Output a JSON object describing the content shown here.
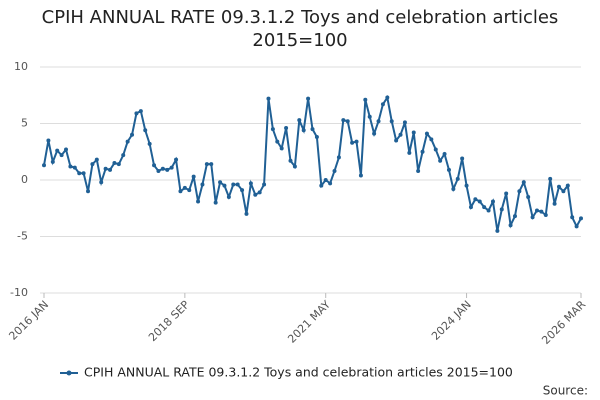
{
  "chart_data": {
    "type": "line",
    "title": "CPIH ANNUAL RATE 09.3.1.2 Toys and celebration articles 2015=100",
    "categories": [
      "2016 JAN",
      null,
      null,
      null,
      null,
      null,
      null,
      null,
      null,
      null,
      null,
      null,
      null,
      null,
      null,
      null,
      null,
      null,
      null,
      null,
      null,
      null,
      null,
      null,
      null,
      null,
      null,
      null,
      null,
      null,
      null,
      null,
      "2018 SEP",
      null,
      null,
      null,
      null,
      null,
      null,
      null,
      null,
      null,
      null,
      null,
      null,
      null,
      null,
      null,
      null,
      null,
      null,
      null,
      null,
      null,
      null,
      null,
      null,
      null,
      null,
      null,
      null,
      null,
      null,
      null,
      "2021 MAY",
      null,
      null,
      null,
      null,
      null,
      null,
      null,
      null,
      null,
      null,
      null,
      null,
      null,
      null,
      null,
      null,
      null,
      null,
      null,
      null,
      null,
      null,
      null,
      null,
      null,
      null,
      null,
      null,
      null,
      null,
      null,
      "2024 JAN",
      null,
      null,
      null,
      null,
      null,
      null,
      null,
      null,
      null,
      null,
      null,
      null,
      null,
      null,
      null,
      null,
      null,
      null,
      null,
      null,
      null,
      null,
      null,
      null,
      null,
      "2026 MAR"
    ],
    "series": [
      {
        "name": "CPIH ANNUAL RATE 09.3.1.2 Toys and celebration articles 2015=100",
        "color": "#206095",
        "values": [
          1.3,
          3.5,
          1.6,
          2.6,
          2.2,
          2.7,
          1.2,
          1.1,
          0.6,
          0.6,
          -1.0,
          1.4,
          1.8,
          -0.2,
          1.0,
          0.9,
          1.5,
          1.4,
          2.2,
          3.4,
          4.0,
          5.9,
          6.1,
          4.4,
          3.2,
          1.3,
          0.8,
          1.0,
          0.9,
          1.1,
          1.8,
          -1.0,
          -0.7,
          -0.9,
          0.3,
          -1.9,
          -0.4,
          1.4,
          1.4,
          -2.0,
          -0.2,
          -0.5,
          -1.5,
          -0.4,
          -0.4,
          -0.9,
          -3.0,
          -0.3,
          -1.3,
          -1.1,
          -0.4,
          7.2,
          4.5,
          3.4,
          2.8,
          4.6,
          1.7,
          1.2,
          5.3,
          4.4,
          7.2,
          4.5,
          3.8,
          -0.5,
          0.0,
          -0.3,
          0.8,
          2.0,
          5.3,
          5.2,
          3.3,
          3.4,
          0.4,
          7.1,
          5.6,
          4.1,
          5.2,
          6.7,
          7.3,
          5.2,
          3.5,
          4.0,
          5.1,
          2.4,
          4.2,
          0.8,
          2.5,
          4.1,
          3.6,
          2.7,
          1.7,
          2.3,
          0.9,
          -0.8,
          0.1,
          1.9,
          -0.5,
          -2.4,
          -1.7,
          -1.9,
          -2.4,
          -2.7,
          -1.9,
          -4.5,
          -2.6,
          -1.2,
          -4.0,
          -3.2,
          -1.0,
          -0.2,
          -1.5,
          -3.3,
          -2.7,
          -2.8,
          -3.1,
          0.1,
          -2.1,
          -0.6,
          -1.0,
          -0.5,
          -3.3,
          -4.1,
          -3.4
        ]
      }
    ],
    "ylim": [
      -10,
      10
    ],
    "yticks": [
      -10,
      -5,
      0,
      5,
      10
    ],
    "grid": true,
    "source": "Source:"
  }
}
